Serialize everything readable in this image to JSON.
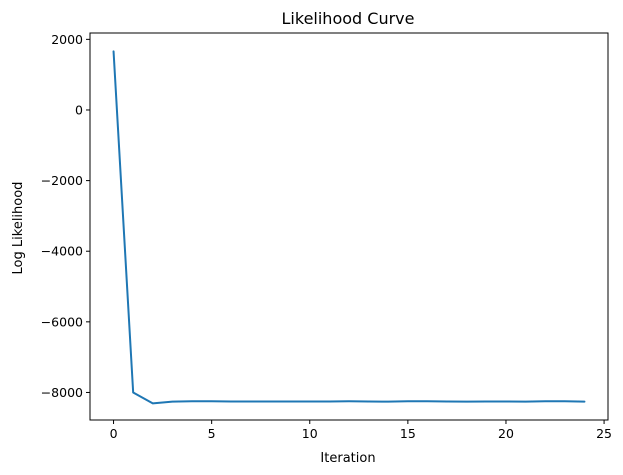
{
  "chart_data": {
    "type": "line",
    "title": "Likelihood Curve",
    "xlabel": "Iteration",
    "ylabel": "Log Likelihood",
    "xlim": [
      -1.2,
      25.2
    ],
    "ylim": [
      -8780,
      2180
    ],
    "x_ticks": [
      0,
      5,
      10,
      15,
      20,
      25
    ],
    "x_tick_labels": [
      "0",
      "5",
      "10",
      "15",
      "20",
      "25"
    ],
    "y_ticks": [
      2000,
      0,
      -2000,
      -4000,
      -6000,
      -8000
    ],
    "y_tick_labels": [
      "2000",
      "0",
      "−2000",
      "−4000",
      "−6000",
      "−8000"
    ],
    "grid": false,
    "legend": "none",
    "line_color": "#1f77b4",
    "series": [
      {
        "x": [
          0,
          1,
          2,
          3,
          4,
          5,
          6,
          7,
          8,
          9,
          10,
          11,
          12,
          13,
          14,
          15,
          16,
          17,
          18,
          19,
          20,
          21,
          22,
          23,
          24
        ],
        "y": [
          1660,
          -8000,
          -8310,
          -8260,
          -8250,
          -8250,
          -8255,
          -8255,
          -8255,
          -8255,
          -8255,
          -8255,
          -8250,
          -8255,
          -8260,
          -8250,
          -8250,
          -8255,
          -8260,
          -8255,
          -8255,
          -8260,
          -8250,
          -8250,
          -8260
        ]
      }
    ]
  }
}
